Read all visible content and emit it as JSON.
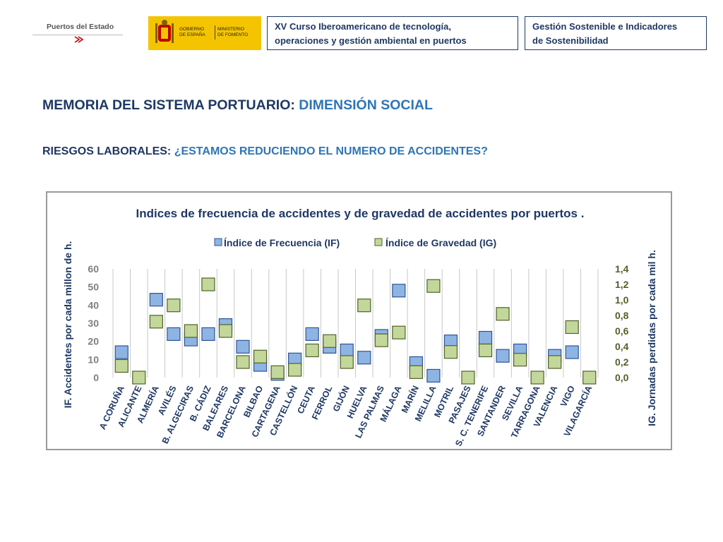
{
  "header": {
    "logo_puertos": "Puertos del Estado",
    "gobierno_line1": "GOBIERNO",
    "gobierno_line2": "DE ESPAÑA",
    "ministerio_line1": "MINISTERIO",
    "ministerio_line2": "DE FOMENTO",
    "course_line1": "XV Curso Iberoamericano de tecnología,",
    "course_line2": "operaciones y gestión ambiental en puertos",
    "topic_line1": "Gestión Sostenible e Indicadores",
    "topic_line2": "de Sostenibilidad"
  },
  "headings": {
    "title_part1": "MEMORIA DEL SISTEMA PORTUARIO: ",
    "title_part2": "DIMENSIÓN SOCIAL",
    "subtitle_part1": "RIESGOS LABORALES: ",
    "subtitle_part2": "¿ESTAMOS REDUCIENDO EL NUMERO DE ACCIDENTES?"
  },
  "colors": {
    "dark_blue": "#1f3864",
    "accent_blue": "#2e75b6",
    "if_fill": "#8eb4e3",
    "if_stroke": "#2f5597",
    "ig_fill": "#c4d79b",
    "ig_stroke": "#4f6228",
    "left_tick_color": "#7f7f7f",
    "right_tick_color": "#4f6228"
  },
  "chart_data": {
    "type": "scatter",
    "title": "Indices de frecuencia de accidentes y de gravedad de accidentes por puertos .",
    "categories": [
      "A CORUÑA",
      "ALICANTE",
      "ALMERÍA",
      "AVILÉS",
      "B. ALGECIRAS",
      "B. CÁDIZ",
      "BALEARES",
      "BARCELONA",
      "BILBAO",
      "CARTAGENA",
      "CASTELLÓN",
      "CEUTA",
      "FERROL",
      "GIJÓN",
      "HUELVA",
      "LAS PALMAS",
      "MÁLAGA",
      "MARÍN",
      "MELILLA",
      "MOTRIL",
      "PASAJES",
      "S. C. TENERIFE",
      "SANTANDER",
      "SEVILLA",
      "TARRAGONA",
      "VALENCIA",
      "VIGO",
      "VILAGARCÍA"
    ],
    "series": [
      {
        "name": "Índice de Frecuencia (IF)",
        "axis": "left",
        "values": [
          14,
          null,
          43,
          24,
          21,
          24,
          29,
          17,
          7,
          2,
          10,
          24,
          17,
          15,
          11,
          23,
          48,
          8,
          1,
          20,
          null,
          22,
          12,
          15,
          null,
          12,
          14,
          null
        ]
      },
      {
        "name": "Índice de Gravedad (IG)",
        "axis": "right",
        "values": [
          0.15,
          0.0,
          0.72,
          0.93,
          0.6,
          1.2,
          0.6,
          0.2,
          0.27,
          0.07,
          0.1,
          0.35,
          0.47,
          0.2,
          0.93,
          0.48,
          0.58,
          0.07,
          1.18,
          0.33,
          0.0,
          0.35,
          0.82,
          0.23,
          0.0,
          0.2,
          0.65,
          0.0
        ]
      }
    ],
    "ylabel": "IF. Accidentes por cada millon de h.",
    "y2label": "IG. Jornadas perdidas por cada mil h.",
    "ylim": [
      0,
      60
    ],
    "yticks": [
      "0",
      "10",
      "20",
      "30",
      "40",
      "50",
      "60"
    ],
    "y2lim": [
      0,
      1.4
    ],
    "y2ticks": [
      "0,0",
      "0,2",
      "0,4",
      "0,6",
      "0,8",
      "1,0",
      "1,2",
      "1,4"
    ],
    "grid": "vertical",
    "legend": "top"
  }
}
